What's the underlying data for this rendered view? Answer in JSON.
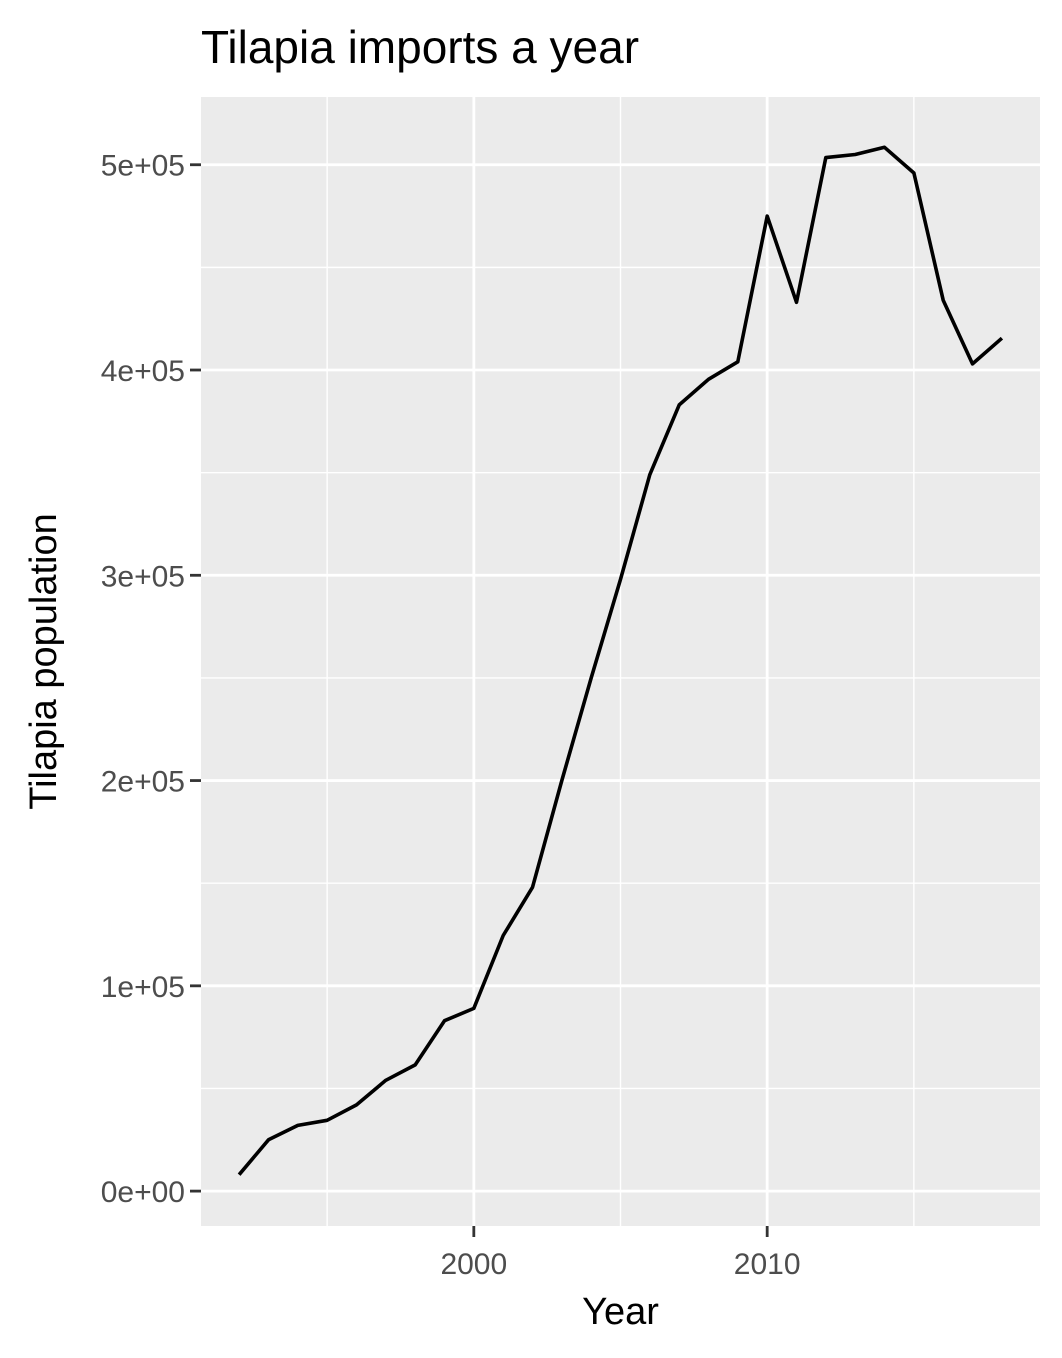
{
  "chart_data": {
    "type": "line",
    "title": "Tilapia imports a year",
    "xlabel": "Year",
    "ylabel": "Tilapia population",
    "xlim": [
      1990.7,
      2019.3
    ],
    "ylim": [
      -17000,
      533000
    ],
    "x_ticks": [
      {
        "value": 2000,
        "label": "2000"
      },
      {
        "value": 2010,
        "label": "2010"
      }
    ],
    "x_minor_ticks": [
      1995,
      2005,
      2015
    ],
    "y_ticks": [
      {
        "value": 0,
        "label": "0e+00"
      },
      {
        "value": 100000,
        "label": "1e+05"
      },
      {
        "value": 200000,
        "label": "2e+05"
      },
      {
        "value": 300000,
        "label": "3e+05"
      },
      {
        "value": 400000,
        "label": "4e+05"
      },
      {
        "value": 500000,
        "label": "5e+05"
      }
    ],
    "y_minor_ticks": [
      50000,
      150000,
      250000,
      350000,
      450000
    ],
    "grid": true,
    "colors": {
      "background": "#ebebeb",
      "grid": "#ffffff",
      "line": "#000000"
    },
    "series": [
      {
        "x": [
          1992,
          1993,
          1994,
          1995,
          1996,
          1997,
          1998,
          1999,
          2000,
          2001,
          2002,
          2003,
          2004,
          2005,
          2006,
          2007,
          2008,
          2009,
          2010,
          2011,
          2012,
          2013,
          2014,
          2015,
          2016,
          2017,
          2018
        ],
        "values": [
          8000,
          25000,
          32000,
          34500,
          42000,
          54000,
          61500,
          83000,
          89000,
          124500,
          148000,
          200000,
          250000,
          298000,
          349000,
          383000,
          395500,
          404000,
          475000,
          433000,
          503500,
          505000,
          508500,
          496000,
          434000,
          403000,
          415500
        ]
      }
    ]
  }
}
